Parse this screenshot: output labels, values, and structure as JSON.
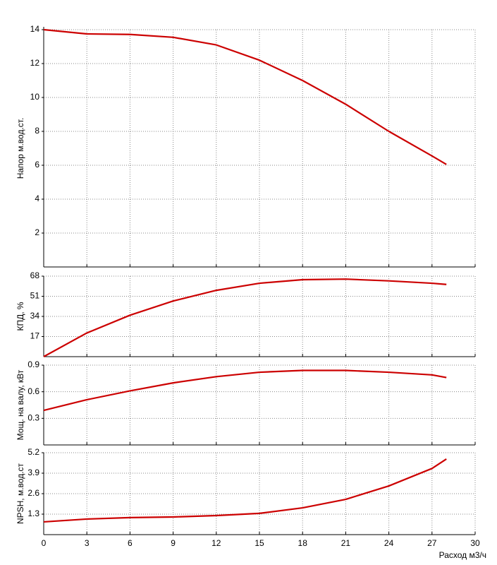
{
  "chart_data": [
    {
      "type": "line",
      "ylabel": "Напор м.вод.ст.",
      "x": [
        0,
        3,
        6,
        9,
        12,
        15,
        18,
        21,
        24,
        27,
        28
      ],
      "series": [
        {
          "color": "#cc0000",
          "values": [
            14.0,
            13.75,
            13.72,
            13.55,
            13.1,
            12.2,
            11.0,
            9.6,
            8.0,
            6.55,
            6.05
          ]
        }
      ],
      "xlim": [
        0,
        30
      ],
      "xticks": [
        0,
        3,
        6,
        9,
        12,
        15,
        18,
        21,
        24,
        27,
        30
      ],
      "ylim": [
        0,
        14
      ],
      "yticks": [
        2,
        4,
        6,
        8,
        10,
        12,
        14
      ],
      "grid": true
    },
    {
      "type": "line",
      "ylabel": "КПД, %",
      "x": [
        0,
        3,
        6,
        9,
        12,
        15,
        18,
        21,
        24,
        27,
        28
      ],
      "series": [
        {
          "color": "#cc0000",
          "values": [
            0,
            20,
            35,
            47,
            56,
            62,
            65,
            65.5,
            64,
            62,
            61
          ]
        }
      ],
      "xlim": [
        0,
        30
      ],
      "xticks": [
        0,
        3,
        6,
        9,
        12,
        15,
        18,
        21,
        24,
        27,
        30
      ],
      "ylim": [
        0,
        68
      ],
      "yticks": [
        17,
        34,
        51,
        68
      ],
      "grid": true
    },
    {
      "type": "line",
      "ylabel": "Мощ. на валу, кВт",
      "x": [
        0,
        3,
        6,
        9,
        12,
        15,
        18,
        21,
        24,
        27,
        28
      ],
      "series": [
        {
          "color": "#cc0000",
          "values": [
            0.39,
            0.51,
            0.61,
            0.7,
            0.77,
            0.82,
            0.84,
            0.84,
            0.82,
            0.79,
            0.76
          ]
        }
      ],
      "xlim": [
        0,
        30
      ],
      "xticks": [
        0,
        3,
        6,
        9,
        12,
        15,
        18,
        21,
        24,
        27,
        30
      ],
      "ylim": [
        0,
        0.9
      ],
      "yticks": [
        0.3,
        0.6,
        0.9
      ],
      "grid": true
    },
    {
      "type": "line",
      "ylabel": "NPSH, м.вод.ст",
      "xlabel": "Расход м3/ч",
      "x": [
        0,
        3,
        6,
        9,
        12,
        15,
        18,
        21,
        24,
        27,
        28
      ],
      "series": [
        {
          "color": "#cc0000",
          "values": [
            0.81,
            0.99,
            1.08,
            1.12,
            1.21,
            1.35,
            1.7,
            2.24,
            3.09,
            4.2,
            4.8
          ]
        }
      ],
      "xlim": [
        0,
        30
      ],
      "xticks": [
        0,
        3,
        6,
        9,
        12,
        15,
        18,
        21,
        24,
        27,
        30
      ],
      "ylim": [
        0,
        5.2
      ],
      "yticks": [
        1.3,
        2.6,
        3.9,
        5.2
      ],
      "grid": true
    }
  ]
}
